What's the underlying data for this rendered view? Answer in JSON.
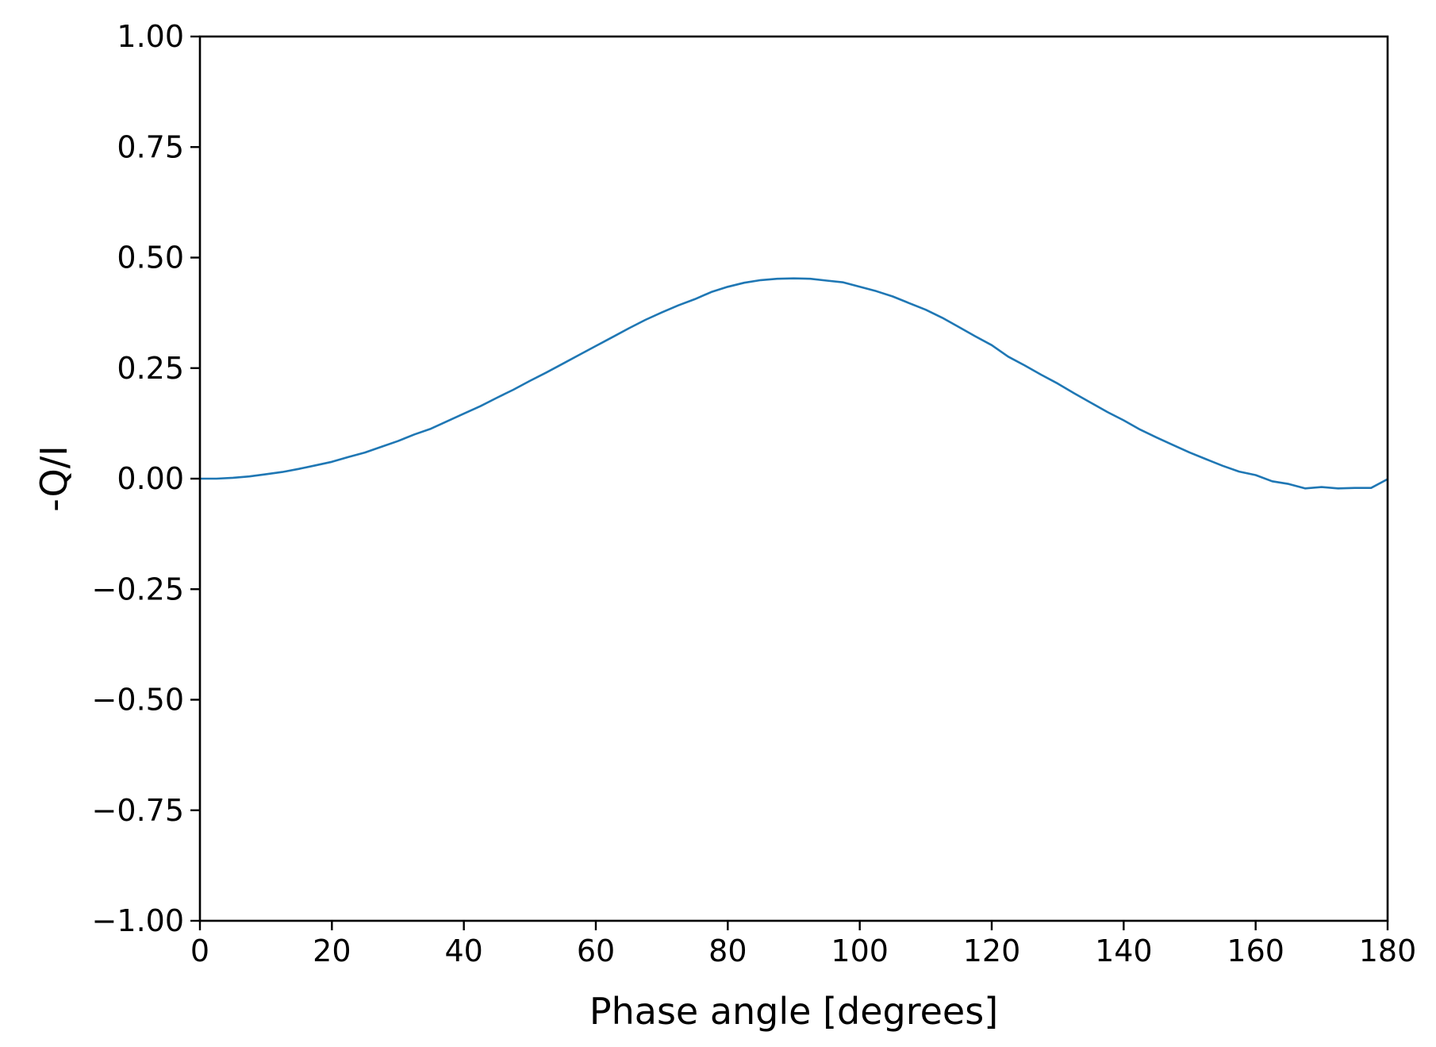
{
  "chart_data": {
    "type": "line",
    "title": "",
    "xlabel": "Phase angle [degrees]",
    "ylabel": "-Q/I",
    "xlim": [
      0,
      180
    ],
    "ylim": [
      -1.0,
      1.0
    ],
    "x_ticks": [
      0,
      20,
      40,
      60,
      80,
      100,
      120,
      140,
      160,
      180
    ],
    "x_tick_labels": [
      "0",
      "20",
      "40",
      "60",
      "80",
      "100",
      "120",
      "140",
      "160",
      "180"
    ],
    "y_ticks": [
      -1.0,
      -0.75,
      -0.5,
      -0.25,
      0.0,
      0.25,
      0.5,
      0.75,
      1.0
    ],
    "y_tick_labels": [
      "−1.00",
      "−0.75",
      "−0.50",
      "−0.25",
      "0.00",
      "0.25",
      "0.50",
      "0.75",
      "1.00"
    ],
    "grid": false,
    "legend": "none",
    "colors": {
      "line": "#1f77b4",
      "axes": "#000000",
      "background": "#ffffff"
    },
    "series": [
      {
        "x": [
          0,
          2.5,
          5,
          7.5,
          10,
          12.5,
          15,
          17.5,
          20,
          22.5,
          25,
          27.5,
          30,
          32.5,
          35,
          37.5,
          40,
          42.5,
          45,
          47.5,
          50,
          52.5,
          55,
          57.5,
          60,
          62.5,
          65,
          67.5,
          70,
          72.5,
          75,
          77.5,
          80,
          82.5,
          85,
          87.5,
          90,
          92.5,
          95,
          97.5,
          100,
          102.5,
          105,
          107.5,
          110,
          112.5,
          115,
          117.5,
          120,
          122.5,
          125,
          127.5,
          130,
          132.5,
          135,
          137.5,
          140,
          142.5,
          145,
          147.5,
          150,
          152.5,
          155,
          157.5,
          160,
          162.5,
          165,
          167.5,
          170,
          172.5,
          175,
          177.5,
          180
        ],
        "y": [
          0.0,
          0.0,
          0.002,
          0.005,
          0.01,
          0.015,
          0.022,
          0.03,
          0.038,
          0.049,
          0.059,
          0.072,
          0.085,
          0.1,
          0.113,
          0.13,
          0.147,
          0.164,
          0.183,
          0.201,
          0.221,
          0.24,
          0.26,
          0.28,
          0.3,
          0.32,
          0.34,
          0.359,
          0.376,
          0.392,
          0.406,
          0.422,
          0.434,
          0.443,
          0.449,
          0.452,
          0.453,
          0.452,
          0.448,
          0.444,
          0.434,
          0.424,
          0.412,
          0.397,
          0.382,
          0.364,
          0.343,
          0.322,
          0.302,
          0.276,
          0.256,
          0.235,
          0.215,
          0.193,
          0.172,
          0.151,
          0.132,
          0.111,
          0.093,
          0.076,
          0.059,
          0.044,
          0.029,
          0.016,
          0.008,
          -0.006,
          -0.012,
          -0.022,
          -0.019,
          -0.022,
          -0.021,
          -0.021,
          -0.001
        ]
      }
    ]
  }
}
